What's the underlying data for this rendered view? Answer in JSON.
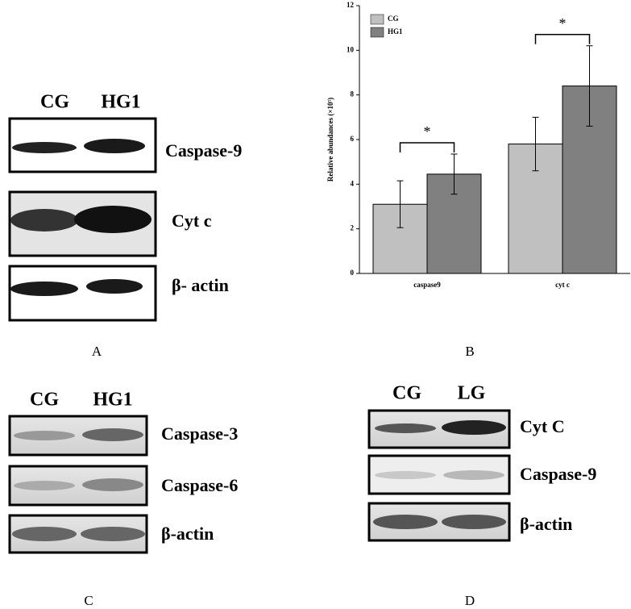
{
  "panels": {
    "A": {
      "label": "A",
      "columns": [
        "CG",
        "HG1"
      ],
      "rows": [
        "Caspase-9",
        "Cyt c",
        "β- actin"
      ]
    },
    "C": {
      "label": "C",
      "columns": [
        "CG",
        "HG1"
      ],
      "rows": [
        "Caspase-3",
        "Caspase-6",
        "β-actin"
      ]
    },
    "D": {
      "label": "D",
      "columns": [
        "CG",
        "LG"
      ],
      "rows": [
        "Cyt C",
        "Caspase-9",
        "β-actin"
      ]
    }
  },
  "chart_data": {
    "type": "bar",
    "panel_label": "B",
    "y_label": "Relative abundances (×10⁵)",
    "categories": [
      "caspase9",
      "cyt c"
    ],
    "series": [
      {
        "name": "CG",
        "color": "#c0c0c0",
        "values": [
          3.1,
          5.8
        ],
        "errors": [
          1.05,
          1.2
        ]
      },
      {
        "name": "HG1",
        "color": "#808080",
        "values": [
          4.45,
          8.4
        ],
        "errors": [
          0.9,
          1.8
        ]
      }
    ],
    "significance": [
      "*",
      "*"
    ],
    "ylim": [
      0,
      12
    ],
    "yticks": [
      0,
      2,
      4,
      6,
      8,
      10,
      12
    ]
  }
}
